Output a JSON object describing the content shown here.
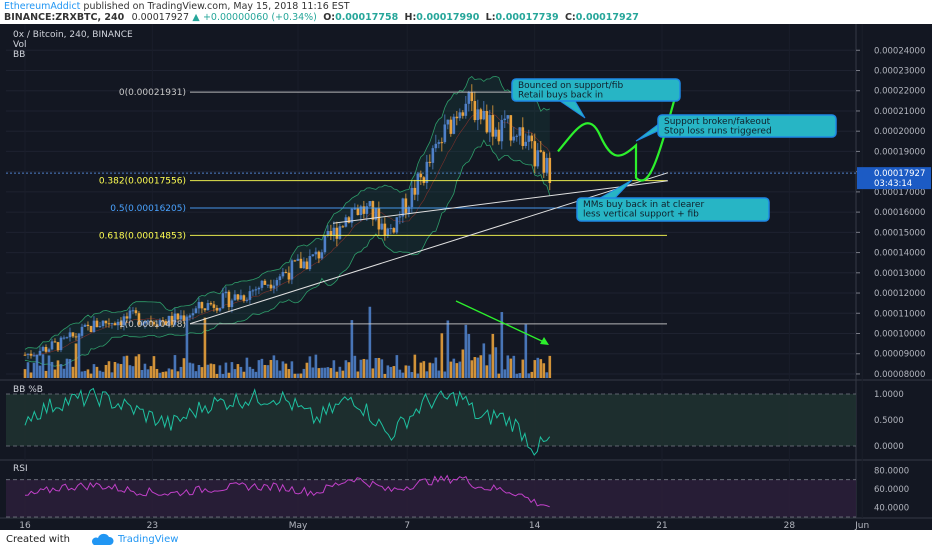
{
  "header": {
    "author": "EthereumAddict",
    "published": "published on TradingView.com, May 15, 2018 11:16 EST",
    "symbol": "BINANCE:ZRXBTC, 240",
    "last": "0.00017927",
    "change_arrow": "▲",
    "change": "+0.00000060 (+0.34%)",
    "o_label": "O:",
    "o": "0.00017758",
    "h_label": "H:",
    "h": "0.00017990",
    "l_label": "L:",
    "l": "0.00017739",
    "c_label": "C:",
    "c": "0.00017927"
  },
  "legend": {
    "title": "0x / Bitcoin, 240, BINANCE",
    "vol": "Vol",
    "bb": "BB"
  },
  "colors": {
    "background": "#131722",
    "up": "#4f80c8",
    "down": "#e8a13c",
    "fib_yellow": "#ffff52",
    "fib_blue": "#4aa3ff",
    "annotation_green": "#2cf02c",
    "callout_fill": "#27b5c5",
    "bbpct_line": "#1ec0a0",
    "rsi_line": "#c040c8"
  },
  "chart_data": [
    {
      "type": "line",
      "name": "price",
      "ylim": [
        7.8e-05,
        0.000252
      ],
      "y_ticks": [
        "0.00024000",
        "0.00023000",
        "0.00022000",
        "0.00021000",
        "0.00020000",
        "0.00019000",
        "0.00018000",
        "0.00017000",
        "0.00016000",
        "0.00015000",
        "0.00014000",
        "0.00013000",
        "0.00012000",
        "0.00011000",
        "0.00010000",
        "0.00009000",
        "0.00008000"
      ],
      "x_ticks": [
        "16",
        "23",
        "May",
        "7",
        "14",
        "21",
        "28",
        "Jun"
      ],
      "last_price_label": "0.00017927",
      "countdown_label": "03:43:14",
      "x": [
        "Apr 16",
        "Apr 18",
        "Apr 20",
        "Apr 22",
        "Apr 24",
        "Apr 26",
        "Apr 28",
        "Apr 30",
        "May 2",
        "May 4",
        "May 5",
        "May 6",
        "May 8",
        "May 10",
        "May 11",
        "May 12",
        "May 13",
        "May 14",
        "May 15"
      ],
      "values": [
        8.95e-05,
        9.5e-05,
        0.000105,
        0.000108,
        0.000106,
        0.000114,
        0.000119,
        0.000129,
        0.000138,
        0.000162,
        0.00016,
        0.00015,
        0.00018,
        0.000215,
        0.00021,
        0.0002,
        0.000202,
        0.000187,
        0.0001793
      ],
      "fib_levels": [
        {
          "label": "0(0.00021931)",
          "value": 0.00021931,
          "color": "#c8c8c8"
        },
        {
          "label": "0.382(0.00017556)",
          "value": 0.00017556,
          "color": "#ffff52"
        },
        {
          "label": "0.5(0.00016205)",
          "value": 0.00016205,
          "color": "#4aa3ff"
        },
        {
          "label": "0.618(0.00014853)",
          "value": 0.00014853,
          "color": "#ffff52"
        },
        {
          "label": "1(0.00010478)",
          "value": 0.00010478,
          "color": "#c8c8c8"
        }
      ],
      "annotations": [
        "Bounced on support/fib\nRetail buys back in",
        "Support broken/fakeout\nStop loss runs triggered",
        "MMs buy back in at clearer\nless vertical support + fib"
      ]
    },
    {
      "type": "line",
      "name": "BB %B",
      "label": "BB %B",
      "ylim": [
        -0.25,
        1.25
      ],
      "y_ticks": [
        "1.0000",
        "0.5000",
        "0.0000"
      ],
      "values": [
        0.55,
        0.85,
        0.95,
        0.7,
        0.4,
        0.8,
        0.9,
        0.95,
        0.5,
        0.95,
        0.6,
        0.2,
        0.85,
        0.95,
        0.5,
        0.6,
        0.4,
        -0.05,
        0.12
      ]
    },
    {
      "type": "line",
      "name": "RSI",
      "label": "RSI",
      "ylim": [
        30,
        90
      ],
      "y_ticks": [
        "80.0000",
        "60.0000",
        "40.0000"
      ],
      "values": [
        52,
        62,
        64,
        58,
        55,
        60,
        63,
        62,
        56,
        72,
        66,
        58,
        68,
        72,
        62,
        60,
        56,
        46,
        41
      ]
    }
  ],
  "footer": {
    "created_with": "Created with",
    "brand": "TradingView"
  }
}
